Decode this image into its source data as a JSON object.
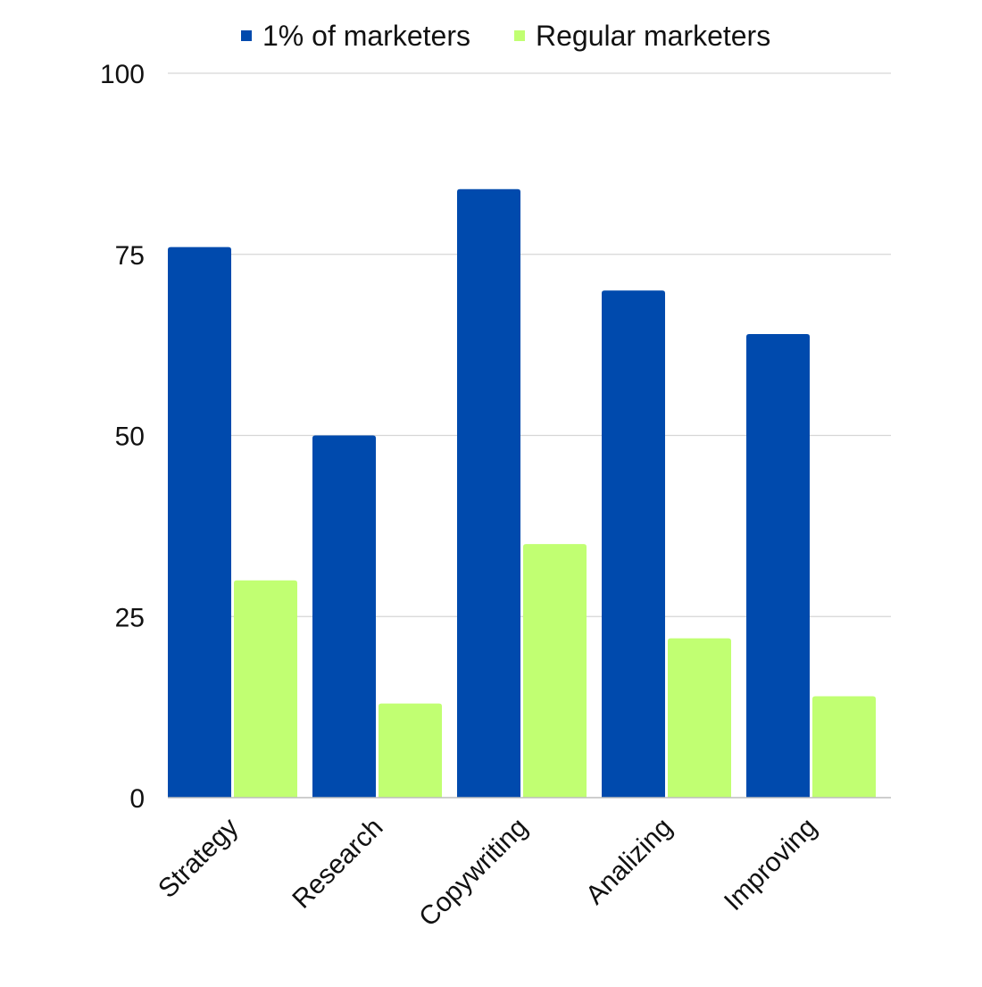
{
  "chart_data": {
    "type": "bar",
    "categories": [
      "Strategy",
      "Research",
      "Copywriting",
      "Analizing",
      "Improving"
    ],
    "series": [
      {
        "name": "1% of marketers",
        "color": "#004AAD",
        "values": [
          76,
          50,
          84,
          70,
          64
        ]
      },
      {
        "name": "Regular marketers",
        "color": "#C1FF72",
        "values": [
          30,
          13,
          35,
          22,
          14
        ]
      }
    ],
    "ylim": [
      0,
      100
    ],
    "yticks": [
      "0",
      "25",
      "50",
      "75",
      "100"
    ],
    "ytick_values": [
      0,
      25,
      50,
      75,
      100
    ],
    "grid": true,
    "legend_position": "top-center",
    "title": "",
    "xlabel": "",
    "ylabel": ""
  }
}
